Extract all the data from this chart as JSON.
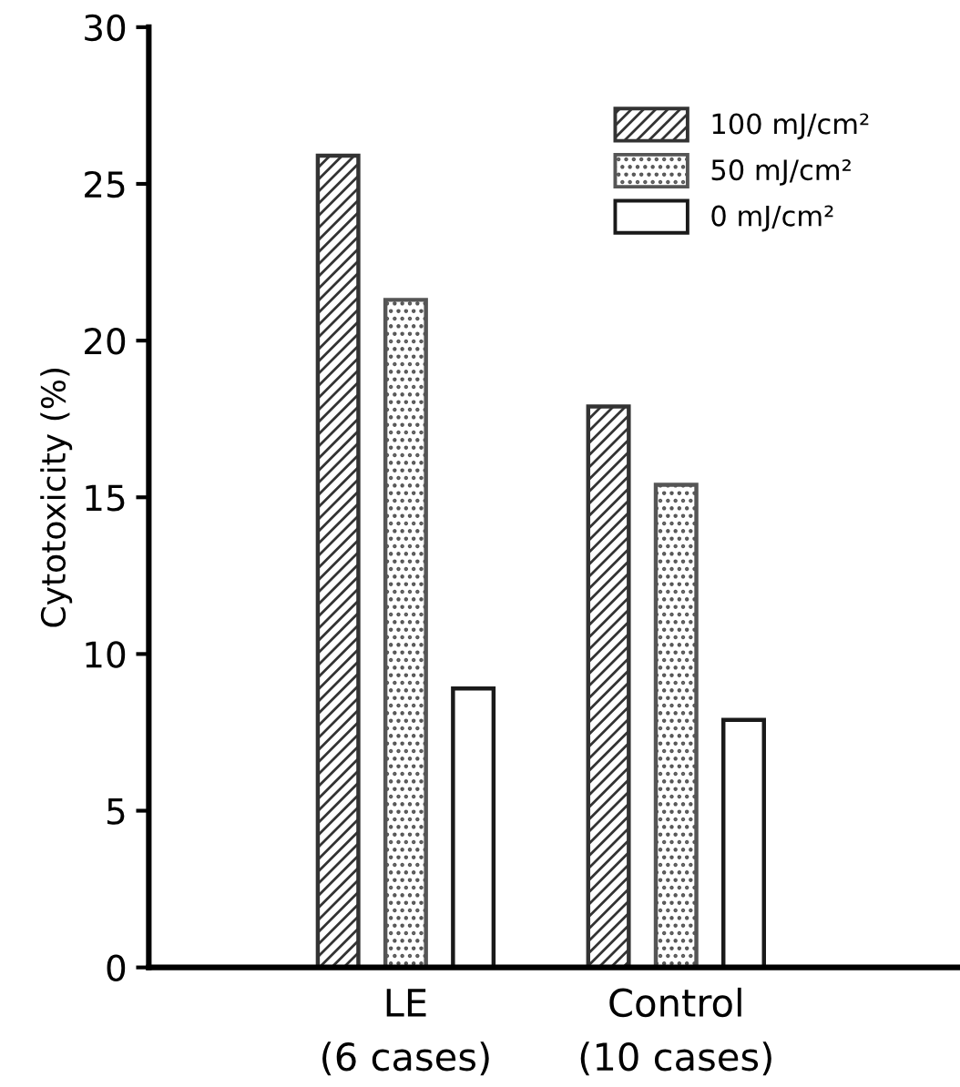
{
  "chart_data": {
    "type": "bar",
    "ylabel": "Cytotoxicity (%)",
    "categories": [
      "LE\n(6 cases)",
      "Control\n(10 cases)"
    ],
    "series": [
      {
        "name": "100 mJ/cm²",
        "color": "#333333",
        "values": [
          25.9,
          17.9
        ]
      },
      {
        "name": "50 mJ/cm²",
        "color": "#555555",
        "values": [
          21.3,
          15.4
        ]
      },
      {
        "name": "0 mJ/cm²",
        "color": "#ffffff",
        "values": [
          8.9,
          7.9
        ]
      }
    ],
    "ylim": [
      0,
      30
    ],
    "yticks": [
      0,
      5,
      10,
      15,
      20,
      25,
      30
    ],
    "grid": false,
    "legend": "top right"
  }
}
